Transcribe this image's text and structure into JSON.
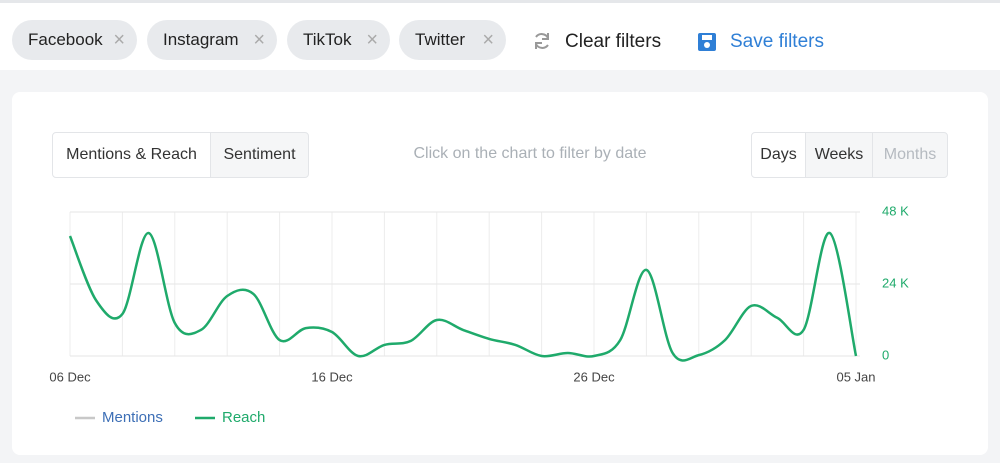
{
  "filters": [
    "Facebook",
    "Instagram",
    "TikTok",
    "Twitter"
  ],
  "actions": {
    "clear": "Clear filters",
    "save": "Save filters"
  },
  "tabs": [
    "Mentions & Reach",
    "Sentiment"
  ],
  "hint": "Click on the chart to filter by date",
  "periods": [
    "Days",
    "Weeks",
    "Months"
  ],
  "chart_data": {
    "type": "line",
    "categories": [
      "06 Dec",
      null,
      null,
      null,
      null,
      null,
      null,
      null,
      null,
      null,
      "16 Dec",
      null,
      null,
      null,
      null,
      null,
      null,
      null,
      null,
      null,
      "26 Dec",
      null,
      null,
      null,
      null,
      null,
      null,
      null,
      null,
      null,
      "05 Jan"
    ],
    "series": [
      {
        "name": "Mentions",
        "color": "#c8c8c8",
        "values": [
          null,
          null,
          null,
          null,
          null,
          null,
          null,
          null,
          null,
          null,
          null,
          null,
          null,
          null,
          null,
          null,
          null,
          null,
          null,
          null,
          null,
          null,
          null,
          null,
          null,
          null,
          null,
          null,
          null,
          null,
          null
        ]
      },
      {
        "name": "Reach",
        "color": "#1faa6b",
        "axis": "y2",
        "values": [
          40000,
          18500,
          14000,
          41000,
          11000,
          8700,
          20000,
          20700,
          5300,
          9300,
          8000,
          0,
          3700,
          5000,
          12000,
          8700,
          5700,
          3700,
          0,
          1000,
          0,
          5300,
          28700,
          1000,
          300,
          5300,
          16700,
          12700,
          8700,
          41000,
          0
        ]
      }
    ],
    "y2lim": [
      0,
      48000
    ],
    "y2ticks": [
      0,
      {
        "value": 24000,
        "label": "24 K"
      },
      {
        "value": 48000,
        "label": "48 K"
      }
    ],
    "grid": true
  }
}
